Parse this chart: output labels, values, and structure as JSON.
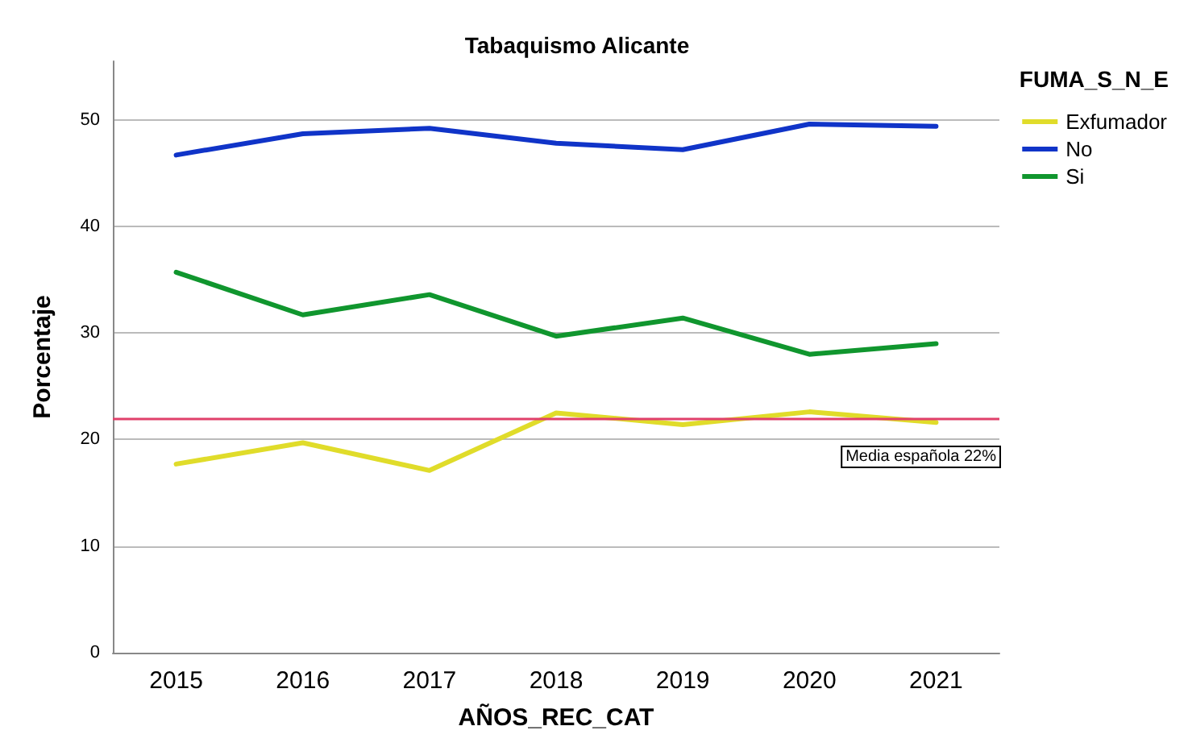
{
  "chart_data": {
    "type": "line",
    "title": "Tabaquismo Alicante",
    "xlabel": "AÑOS_REC_CAT",
    "ylabel": "Porcentaje",
    "legend_title": "FUMA_S_N_E",
    "categories": [
      "2015",
      "2016",
      "2017",
      "2018",
      "2019",
      "2020",
      "2021"
    ],
    "series": [
      {
        "name": "Exfumador",
        "color": "#e0dc2a",
        "values": [
          17.7,
          19.7,
          17.1,
          22.5,
          21.4,
          22.6,
          21.6
        ]
      },
      {
        "name": "No",
        "color": "#1034c8",
        "values": [
          46.7,
          48.7,
          49.2,
          47.8,
          47.2,
          49.6,
          49.4
        ]
      },
      {
        "name": "Si",
        "color": "#10962e",
        "values": [
          35.7,
          31.7,
          33.6,
          29.7,
          31.4,
          28.0,
          29.0
        ]
      }
    ],
    "ylim": [
      0,
      55.5
    ],
    "yticks": [
      0,
      10,
      20,
      30,
      40,
      50
    ],
    "ref_lines": [
      {
        "axis": "y",
        "value": 22,
        "label": "Media española 22%",
        "color": "#e0406a"
      }
    ],
    "grid": "y",
    "legend": "top right",
    "marker": "none",
    "line_style": "solid"
  }
}
